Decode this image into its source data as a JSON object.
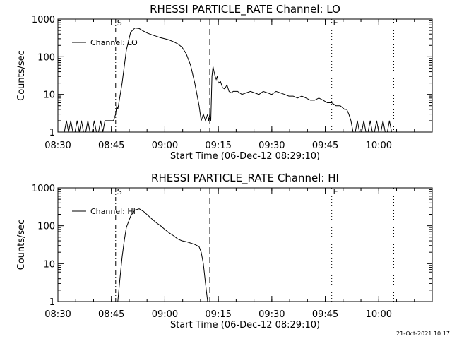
{
  "chart_data": [
    {
      "type": "line",
      "title": "RHESSI PARTICLE_RATE Channel: LO",
      "xlabel": "Start Time (06-Dec-12 08:29:10)",
      "ylabel": "Counts/sec",
      "yscale": "log",
      "ylim": [
        1,
        1000
      ],
      "xlim": [
        8.5,
        10.25
      ],
      "x_ticks": [
        8.5,
        8.75,
        9.0,
        9.25,
        9.5,
        9.75,
        10.0
      ],
      "x_tick_labels": [
        "08:30",
        "08:45",
        "09:00",
        "09:15",
        "09:30",
        "09:45",
        "10:00"
      ],
      "y_ticks": [
        1,
        10,
        100,
        1000
      ],
      "y_tick_labels": [
        "1",
        "10",
        "100",
        "1000"
      ],
      "legend": {
        "label": "Channel: LO",
        "placement": "top-left"
      },
      "markers": [
        {
          "label": "S",
          "x": 8.77,
          "style": "dash-dot"
        },
        {
          "label": "",
          "x": 9.21,
          "style": "dashed"
        },
        {
          "label": "E",
          "x": 9.78,
          "style": "dotted"
        },
        {
          "label": "",
          "x": 10.07,
          "style": "dotted"
        }
      ],
      "series": [
        {
          "name": "Channel: LO",
          "x": [
            8.5,
            8.52,
            8.53,
            8.54,
            8.55,
            8.56,
            8.57,
            8.58,
            8.59,
            8.6,
            8.61,
            8.62,
            8.63,
            8.64,
            8.65,
            8.66,
            8.67,
            8.68,
            8.69,
            8.7,
            8.71,
            8.72,
            8.73,
            8.74,
            8.75,
            8.76,
            8.77,
            8.775,
            8.78,
            8.8,
            8.82,
            8.84,
            8.86,
            8.88,
            8.9,
            8.92,
            8.94,
            8.96,
            8.98,
            9.0,
            9.02,
            9.04,
            9.06,
            9.08,
            9.1,
            9.12,
            9.14,
            9.16,
            9.17,
            9.18,
            9.19,
            9.2,
            9.205,
            9.21,
            9.215,
            9.22,
            9.225,
            9.23,
            9.235,
            9.24,
            9.245,
            9.25,
            9.26,
            9.27,
            9.28,
            9.29,
            9.3,
            9.31,
            9.32,
            9.34,
            9.36,
            9.38,
            9.4,
            9.42,
            9.44,
            9.46,
            9.48,
            9.5,
            9.52,
            9.54,
            9.56,
            9.58,
            9.6,
            9.62,
            9.64,
            9.66,
            9.68,
            9.7,
            9.72,
            9.74,
            9.76,
            9.78,
            9.8,
            9.82,
            9.84,
            9.85,
            9.86,
            9.87,
            9.88,
            9.89,
            9.9,
            9.91,
            9.92,
            9.93,
            9.94,
            9.95,
            9.96,
            9.97,
            9.98,
            9.99,
            10.0,
            10.01,
            10.02,
            10.03,
            10.04,
            10.05,
            10.06,
            10.07,
            10.08,
            10.1,
            10.15,
            10.2,
            10.25
          ],
          "values": [
            1,
            1,
            1,
            2,
            1,
            2,
            1,
            1,
            2,
            1,
            2,
            1,
            1,
            2,
            1,
            1,
            2,
            1,
            1,
            2,
            1,
            2,
            2,
            2,
            2,
            2,
            3,
            5,
            4,
            20,
            150,
            450,
            580,
            560,
            480,
            420,
            380,
            350,
            320,
            300,
            280,
            250,
            220,
            180,
            120,
            60,
            20,
            5,
            2,
            3,
            2,
            3,
            2,
            3,
            2,
            30,
            55,
            40,
            30,
            25,
            30,
            20,
            22,
            15,
            14,
            18,
            12,
            11,
            12,
            12,
            10,
            11,
            12,
            11,
            10,
            12,
            11,
            10,
            12,
            11,
            10,
            9,
            9,
            8,
            9,
            8,
            7,
            7,
            8,
            7,
            6,
            6,
            5,
            5,
            4,
            4,
            3,
            2,
            1,
            1,
            2,
            1,
            1,
            2,
            1,
            1,
            2,
            1,
            1,
            2,
            1,
            1,
            2,
            1,
            1,
            2,
            1,
            1,
            1,
            1,
            1,
            1,
            1
          ]
        }
      ]
    },
    {
      "type": "line",
      "title": "RHESSI PARTICLE_RATE Channel: HI",
      "xlabel": "Start Time (06-Dec-12 08:29:10)",
      "ylabel": "Counts/sec",
      "yscale": "log",
      "ylim": [
        1,
        1000
      ],
      "xlim": [
        8.5,
        10.25
      ],
      "x_ticks": [
        8.5,
        8.75,
        9.0,
        9.25,
        9.5,
        9.75,
        10.0
      ],
      "x_tick_labels": [
        "08:30",
        "08:45",
        "09:00",
        "09:15",
        "09:30",
        "09:45",
        "10:00"
      ],
      "y_ticks": [
        1,
        10,
        100,
        1000
      ],
      "y_tick_labels": [
        "1",
        "10",
        "100",
        "1000"
      ],
      "legend": {
        "label": "Channel: HI",
        "placement": "top-left"
      },
      "markers": [
        {
          "label": "S",
          "x": 8.77,
          "style": "dash-dot"
        },
        {
          "label": "",
          "x": 9.21,
          "style": "dashed"
        },
        {
          "label": "E",
          "x": 9.78,
          "style": "dotted"
        },
        {
          "label": "",
          "x": 10.07,
          "style": "dotted"
        }
      ],
      "series": [
        {
          "name": "Channel: HI",
          "x": [
            8.78,
            8.79,
            8.8,
            8.81,
            8.82,
            8.84,
            8.86,
            8.88,
            8.9,
            8.92,
            8.94,
            8.96,
            8.98,
            9.0,
            9.02,
            9.04,
            9.06,
            9.08,
            9.1,
            9.12,
            9.14,
            9.15,
            9.16,
            9.17,
            9.18,
            9.19,
            9.2
          ],
          "values": [
            1,
            4,
            15,
            40,
            90,
            180,
            260,
            280,
            240,
            190,
            150,
            120,
            100,
            80,
            65,
            55,
            45,
            40,
            38,
            35,
            32,
            30,
            28,
            20,
            10,
            3,
            1
          ]
        }
      ]
    }
  ],
  "footer": {
    "date_stamp": "21-Oct-2021 10:17"
  }
}
